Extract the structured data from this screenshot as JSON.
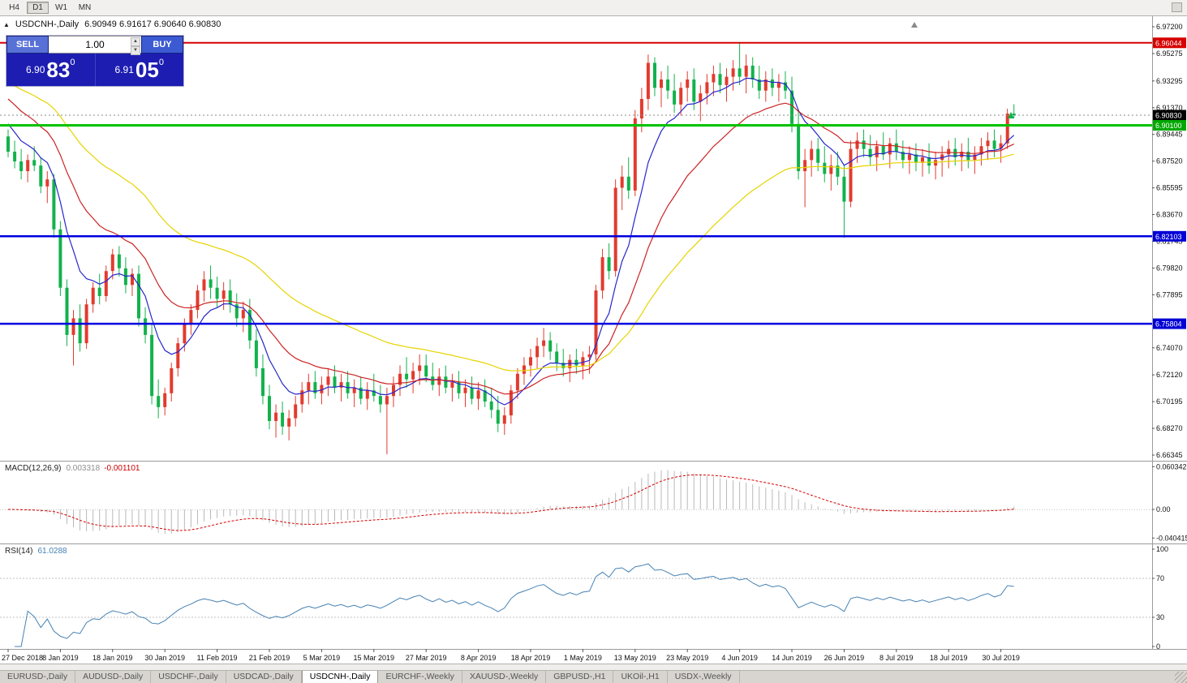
{
  "toolbar": {
    "timeframes": [
      {
        "label": "H4",
        "active": false
      },
      {
        "label": "D1",
        "active": true
      },
      {
        "label": "W1",
        "active": false
      },
      {
        "label": "MN",
        "active": false
      }
    ]
  },
  "icons": {
    "panel_collapse": "▲",
    "volume_up": "▲",
    "volume_down": "▼"
  },
  "chart": {
    "symbol_title": "USDCNH-,Daily",
    "ohlc": "6.90949 6.91617 6.90640 6.90830"
  },
  "trade_panel": {
    "sell_label": "SELL",
    "buy_label": "BUY",
    "volume": "1.00",
    "bid_small": "6.90",
    "bid_big": "83",
    "bid_sup": "0",
    "ask_small": "6.91",
    "ask_big": "05",
    "ask_sup": "0"
  },
  "chart_data": {
    "type": "candlestick",
    "symbol": "USDCNH",
    "timeframe": "Daily",
    "candles_per_label": 8,
    "x_labels": [
      "27 Dec 2018",
      "8 Jan 2019",
      "18 Jan 2019",
      "30 Jan 2019",
      "11 Feb 2019",
      "21 Feb 2019",
      "5 Mar 2019",
      "15 Mar 2019",
      "27 Mar 2019",
      "8 Apr 2019",
      "18 Apr 2019",
      "1 May 2019",
      "13 May 2019",
      "23 May 2019",
      "4 Jun 2019",
      "14 Jun 2019",
      "26 Jun 2019",
      "8 Jul 2019",
      "18 Jul 2019",
      "30 Jul 2019"
    ],
    "y_axis": {
      "min": 6.66345,
      "max": 6.972,
      "ticks": [
        "6.97200",
        "6.95275",
        "6.93295",
        "6.91370",
        "6.89445",
        "6.87520",
        "6.85595",
        "6.83670",
        "6.81745",
        "6.79820",
        "6.77895",
        "6.74070",
        "6.72120",
        "6.70195",
        "6.68270",
        "6.66345"
      ]
    },
    "price_lines": [
      {
        "price": 6.96044,
        "color": "#d60000",
        "width": 2
      },
      {
        "price": 6.901,
        "color": "#00c300",
        "width": 3
      },
      {
        "price": 6.82103,
        "color": "#0000e0",
        "width": 2.5
      },
      {
        "price": 6.75804,
        "color": "#0000e0",
        "width": 2.5
      }
    ],
    "price_badges": [
      {
        "text": "6.96044",
        "color": "#d60000"
      },
      {
        "text": "6.90830",
        "color": "#000000"
      },
      {
        "text": "6.90100",
        "color": "#00a800"
      },
      {
        "text": "6.82103",
        "color": "#0000d6"
      },
      {
        "text": "6.75804",
        "color": "#0000d6"
      }
    ],
    "current_price": {
      "text": "6.90830",
      "price": 6.9083
    },
    "colors": {
      "bull": "#e23b2e",
      "bear": "#12b24c"
    },
    "ma_lines": [
      {
        "period": 8,
        "seed": 6.902,
        "color": "#2626cc"
      },
      {
        "period": 20,
        "seed": 6.92,
        "color": "#cc2222"
      },
      {
        "period": 45,
        "seed": 6.932,
        "color": "#e6d400"
      }
    ],
    "indicators": {
      "macd": {
        "label": "MACD(12,26,9)",
        "value_main": "0.003318",
        "value_signal": "-0.001101",
        "params": [
          12,
          26,
          9
        ],
        "axis": [
          {
            "text": "0.060342",
            "v": 0.060342
          },
          {
            "text": "0.00",
            "v": 0
          },
          {
            "text": "-0.040415",
            "v": -0.040415
          }
        ]
      },
      "rsi": {
        "label": "RSI(14)",
        "value": "61.0288",
        "period": 14,
        "levels": [
          70,
          30
        ],
        "axis": [
          {
            "text": "100",
            "v": 100
          },
          {
            "text": "70",
            "v": 70
          },
          {
            "text": "30",
            "v": 30
          },
          {
            "text": "0",
            "v": 0
          }
        ]
      }
    },
    "candles": [
      [
        6.893,
        6.898,
        6.878,
        6.882
      ],
      [
        6.882,
        6.89,
        6.87,
        6.875
      ],
      [
        6.875,
        6.884,
        6.862,
        6.868
      ],
      [
        6.868,
        6.88,
        6.86,
        6.876
      ],
      [
        6.876,
        6.886,
        6.868,
        6.872
      ],
      [
        6.872,
        6.878,
        6.852,
        6.857
      ],
      [
        6.857,
        6.868,
        6.845,
        6.862
      ],
      [
        6.862,
        6.866,
        6.82,
        6.826
      ],
      [
        6.826,
        6.832,
        6.778,
        6.784
      ],
      [
        6.784,
        6.79,
        6.742,
        6.75
      ],
      [
        6.75,
        6.768,
        6.728,
        6.762
      ],
      [
        6.762,
        6.772,
        6.738,
        6.744
      ],
      [
        6.744,
        6.776,
        6.74,
        6.772
      ],
      [
        6.772,
        6.788,
        6.766,
        6.784
      ],
      [
        6.784,
        6.794,
        6.772,
        6.778
      ],
      [
        6.778,
        6.8,
        6.774,
        6.796
      ],
      [
        6.796,
        6.812,
        6.79,
        6.808
      ],
      [
        6.808,
        6.814,
        6.792,
        6.798
      ],
      [
        6.798,
        6.806,
        6.78,
        6.786
      ],
      [
        6.786,
        6.798,
        6.778,
        6.794
      ],
      [
        6.794,
        6.8,
        6.756,
        6.762
      ],
      [
        6.762,
        6.77,
        6.744,
        6.75
      ],
      [
        6.75,
        6.758,
        6.7,
        6.706
      ],
      [
        6.706,
        6.718,
        6.69,
        6.698
      ],
      [
        6.698,
        6.712,
        6.692,
        6.708
      ],
      [
        6.708,
        6.73,
        6.702,
        6.726
      ],
      [
        6.726,
        6.748,
        6.72,
        6.744
      ],
      [
        6.744,
        6.762,
        6.738,
        6.758
      ],
      [
        6.758,
        6.772,
        6.75,
        6.768
      ],
      [
        6.768,
        6.786,
        6.762,
        6.782
      ],
      [
        6.782,
        6.796,
        6.774,
        6.79
      ],
      [
        6.79,
        6.8,
        6.776,
        6.784
      ],
      [
        6.784,
        6.792,
        6.77,
        6.776
      ],
      [
        6.776,
        6.788,
        6.768,
        6.782
      ],
      [
        6.782,
        6.79,
        6.766,
        6.772
      ],
      [
        6.772,
        6.78,
        6.756,
        6.762
      ],
      [
        6.762,
        6.774,
        6.752,
        6.768
      ],
      [
        6.768,
        6.776,
        6.74,
        6.746
      ],
      [
        6.746,
        6.754,
        6.72,
        6.726
      ],
      [
        6.726,
        6.736,
        6.7,
        6.706
      ],
      [
        6.706,
        6.714,
        6.682,
        6.688
      ],
      [
        6.688,
        6.7,
        6.676,
        6.694
      ],
      [
        6.694,
        6.702,
        6.678,
        6.684
      ],
      [
        6.684,
        6.696,
        6.674,
        6.69
      ],
      [
        6.69,
        6.706,
        6.684,
        6.7
      ],
      [
        6.7,
        6.716,
        6.694,
        6.71
      ],
      [
        6.71,
        6.722,
        6.7,
        6.716
      ],
      [
        6.716,
        6.724,
        6.704,
        6.708
      ],
      [
        6.708,
        6.72,
        6.7,
        6.714
      ],
      [
        6.714,
        6.726,
        6.706,
        6.72
      ],
      [
        6.72,
        6.728,
        6.708,
        6.712
      ],
      [
        6.712,
        6.722,
        6.702,
        6.716
      ],
      [
        6.716,
        6.724,
        6.704,
        6.708
      ],
      [
        6.708,
        6.718,
        6.698,
        6.712
      ],
      [
        6.712,
        6.72,
        6.7,
        6.704
      ],
      [
        6.704,
        6.716,
        6.696,
        6.71
      ],
      [
        6.71,
        6.722,
        6.702,
        6.706
      ],
      [
        6.706,
        6.714,
        6.694,
        6.7
      ],
      [
        6.7,
        6.712,
        6.664,
        6.706
      ],
      [
        6.706,
        6.72,
        6.698,
        6.714
      ],
      [
        6.714,
        6.728,
        6.706,
        6.722
      ],
      [
        6.722,
        6.734,
        6.712,
        6.718
      ],
      [
        6.718,
        6.73,
        6.708,
        6.724
      ],
      [
        6.724,
        6.736,
        6.714,
        6.728
      ],
      [
        6.728,
        6.736,
        6.716,
        6.72
      ],
      [
        6.72,
        6.73,
        6.71,
        6.714
      ],
      [
        6.714,
        6.726,
        6.706,
        6.72
      ],
      [
        6.72,
        6.728,
        6.708,
        6.712
      ],
      [
        6.712,
        6.722,
        6.702,
        6.716
      ],
      [
        6.716,
        6.724,
        6.704,
        6.708
      ],
      [
        6.708,
        6.718,
        6.698,
        6.712
      ],
      [
        6.712,
        6.72,
        6.7,
        6.704
      ],
      [
        6.704,
        6.716,
        6.696,
        6.71
      ],
      [
        6.71,
        6.718,
        6.698,
        6.702
      ],
      [
        6.702,
        6.712,
        6.69,
        6.696
      ],
      [
        6.696,
        6.706,
        6.68,
        6.686
      ],
      [
        6.686,
        6.698,
        6.678,
        6.692
      ],
      [
        6.692,
        6.714,
        6.686,
        6.71
      ],
      [
        6.71,
        6.726,
        6.704,
        6.722
      ],
      [
        6.722,
        6.734,
        6.714,
        6.728
      ],
      [
        6.728,
        6.74,
        6.72,
        6.734
      ],
      [
        6.734,
        6.748,
        6.726,
        6.742
      ],
      [
        6.742,
        6.755,
        6.734,
        6.746
      ],
      [
        6.746,
        6.752,
        6.732,
        6.738
      ],
      [
        6.738,
        6.744,
        6.724,
        6.73
      ],
      [
        6.73,
        6.74,
        6.72,
        6.726
      ],
      [
        6.726,
        6.736,
        6.716,
        6.732
      ],
      [
        6.732,
        6.74,
        6.722,
        6.728
      ],
      [
        6.728,
        6.738,
        6.718,
        6.734
      ],
      [
        6.734,
        6.742,
        6.722,
        6.736
      ],
      [
        6.736,
        6.786,
        6.732,
        6.782
      ],
      [
        6.782,
        6.812,
        6.776,
        6.806
      ],
      [
        6.806,
        6.816,
        6.79,
        6.796
      ],
      [
        6.796,
        6.862,
        6.792,
        6.856
      ],
      [
        6.856,
        6.872,
        6.84,
        6.864
      ],
      [
        6.864,
        6.878,
        6.848,
        6.854
      ],
      [
        6.854,
        6.912,
        6.85,
        6.906
      ],
      [
        6.906,
        6.928,
        6.896,
        6.92
      ],
      [
        6.92,
        6.952,
        6.912,
        6.946
      ],
      [
        6.946,
        6.95,
        6.922,
        6.928
      ],
      [
        6.928,
        6.94,
        6.914,
        6.934
      ],
      [
        6.934,
        6.944,
        6.92,
        6.926
      ],
      [
        6.926,
        6.938,
        6.91,
        6.916
      ],
      [
        6.916,
        6.932,
        6.908,
        6.928
      ],
      [
        6.928,
        6.94,
        6.918,
        6.934
      ],
      [
        6.934,
        6.942,
        6.912,
        6.918
      ],
      [
        6.918,
        6.93,
        6.904,
        6.924
      ],
      [
        6.924,
        6.938,
        6.916,
        6.932
      ],
      [
        6.932,
        6.944,
        6.922,
        6.938
      ],
      [
        6.938,
        6.946,
        6.924,
        6.93
      ],
      [
        6.93,
        6.942,
        6.918,
        6.936
      ],
      [
        6.936,
        6.948,
        6.926,
        6.942
      ],
      [
        6.942,
        6.961,
        6.93,
        6.936
      ],
      [
        6.936,
        6.952,
        6.924,
        6.944
      ],
      [
        6.944,
        6.95,
        6.928,
        6.934
      ],
      [
        6.934,
        6.944,
        6.92,
        6.926
      ],
      [
        6.926,
        6.94,
        6.918,
        6.934
      ],
      [
        6.934,
        6.942,
        6.922,
        6.928
      ],
      [
        6.928,
        6.938,
        6.918,
        6.932
      ],
      [
        6.932,
        6.94,
        6.92,
        6.926
      ],
      [
        6.926,
        6.936,
        6.896,
        6.902
      ],
      [
        6.902,
        6.912,
        6.862,
        6.868
      ],
      [
        6.868,
        6.884,
        6.842,
        6.876
      ],
      [
        6.876,
        6.89,
        6.864,
        6.884
      ],
      [
        6.884,
        6.892,
        6.868,
        6.874
      ],
      [
        6.874,
        6.886,
        6.86,
        6.866
      ],
      [
        6.866,
        6.88,
        6.854,
        6.872
      ],
      [
        6.872,
        6.882,
        6.858,
        6.864
      ],
      [
        6.864,
        6.872,
        6.82,
        6.846
      ],
      [
        6.846,
        6.89,
        6.842,
        6.884
      ],
      [
        6.884,
        6.896,
        6.874,
        6.89
      ],
      [
        6.89,
        6.898,
        6.878,
        6.884
      ],
      [
        6.884,
        6.894,
        6.872,
        6.878
      ],
      [
        6.878,
        6.89,
        6.868,
        6.886
      ],
      [
        6.886,
        6.896,
        6.876,
        6.88
      ],
      [
        6.88,
        6.892,
        6.87,
        6.888
      ],
      [
        6.888,
        6.898,
        6.876,
        6.882
      ],
      [
        6.882,
        6.89,
        6.87,
        6.876
      ],
      [
        6.876,
        6.886,
        6.866,
        6.88
      ],
      [
        6.88,
        6.888,
        6.868,
        6.874
      ],
      [
        6.874,
        6.884,
        6.864,
        6.878
      ],
      [
        6.878,
        6.888,
        6.866,
        6.872
      ],
      [
        6.872,
        6.882,
        6.862,
        6.876
      ],
      [
        6.876,
        6.886,
        6.864,
        6.88
      ],
      [
        6.88,
        6.89,
        6.87,
        6.884
      ],
      [
        6.884,
        6.892,
        6.872,
        6.878
      ],
      [
        6.878,
        6.888,
        6.868,
        6.882
      ],
      [
        6.882,
        6.892,
        6.87,
        6.876
      ],
      [
        6.876,
        6.886,
        6.866,
        6.88
      ],
      [
        6.88,
        6.892,
        6.872,
        6.886
      ],
      [
        6.886,
        6.896,
        6.876,
        6.89
      ],
      [
        6.89,
        6.898,
        6.878,
        6.884
      ],
      [
        6.884,
        6.894,
        6.874,
        6.888
      ],
      [
        6.888,
        6.913,
        6.884,
        6.9095
      ],
      [
        6.90949,
        6.91617,
        6.9064,
        6.9083
      ]
    ]
  },
  "tabs": [
    {
      "label": "EURUSD-,Daily",
      "active": false
    },
    {
      "label": "AUDUSD-,Daily",
      "active": false
    },
    {
      "label": "USDCHF-,Daily",
      "active": false
    },
    {
      "label": "USDCAD-,Daily",
      "active": false
    },
    {
      "label": "USDCNH-,Daily",
      "active": true
    },
    {
      "label": "EURCHF-,Weekly",
      "active": false
    },
    {
      "label": "XAUUSD-,Weekly",
      "active": false
    },
    {
      "label": "GBPUSD-,H1",
      "active": false
    },
    {
      "label": "UKOil-,H1",
      "active": false
    },
    {
      "label": "USDX-,Weekly",
      "active": false
    }
  ]
}
